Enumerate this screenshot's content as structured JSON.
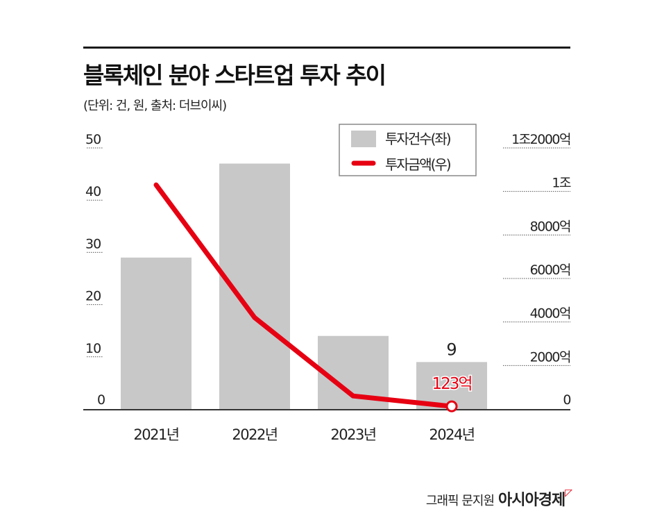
{
  "title": "블록체인 분야 스타트업 투자 추이",
  "subtitle": "(단위: 건, 원, 출처: 더브이씨)",
  "footer": {
    "credit": "그래픽 문지원",
    "brand": "아시아경제"
  },
  "chart_data": {
    "type": "bar+line",
    "categories": [
      "2021년",
      "2022년",
      "2023년",
      "2024년"
    ],
    "series": [
      {
        "name": "투자건수(좌)",
        "type": "bar",
        "axis": "left",
        "values": [
          29,
          47,
          14,
          9
        ],
        "color": "#c8c8c8"
      },
      {
        "name": "투자금액(우)",
        "type": "line",
        "axis": "right",
        "values": [
          10300,
          4200,
          600,
          123
        ],
        "color": "#e60012"
      }
    ],
    "left_axis": {
      "range": [
        0,
        50
      ],
      "ticks": [
        "0",
        "10",
        "20",
        "30",
        "40",
        "50"
      ]
    },
    "right_axis": {
      "range": [
        0,
        12000
      ],
      "unit": "억원",
      "ticks": [
        "0",
        "2000억",
        "4000억",
        "6000억",
        "8000억",
        "1조",
        "1조2000억"
      ]
    },
    "data_labels": {
      "bar_2024": "9",
      "line_2024": "123억"
    },
    "legend_position": "top-right",
    "grid": "dotted tick lines under axis labels"
  }
}
